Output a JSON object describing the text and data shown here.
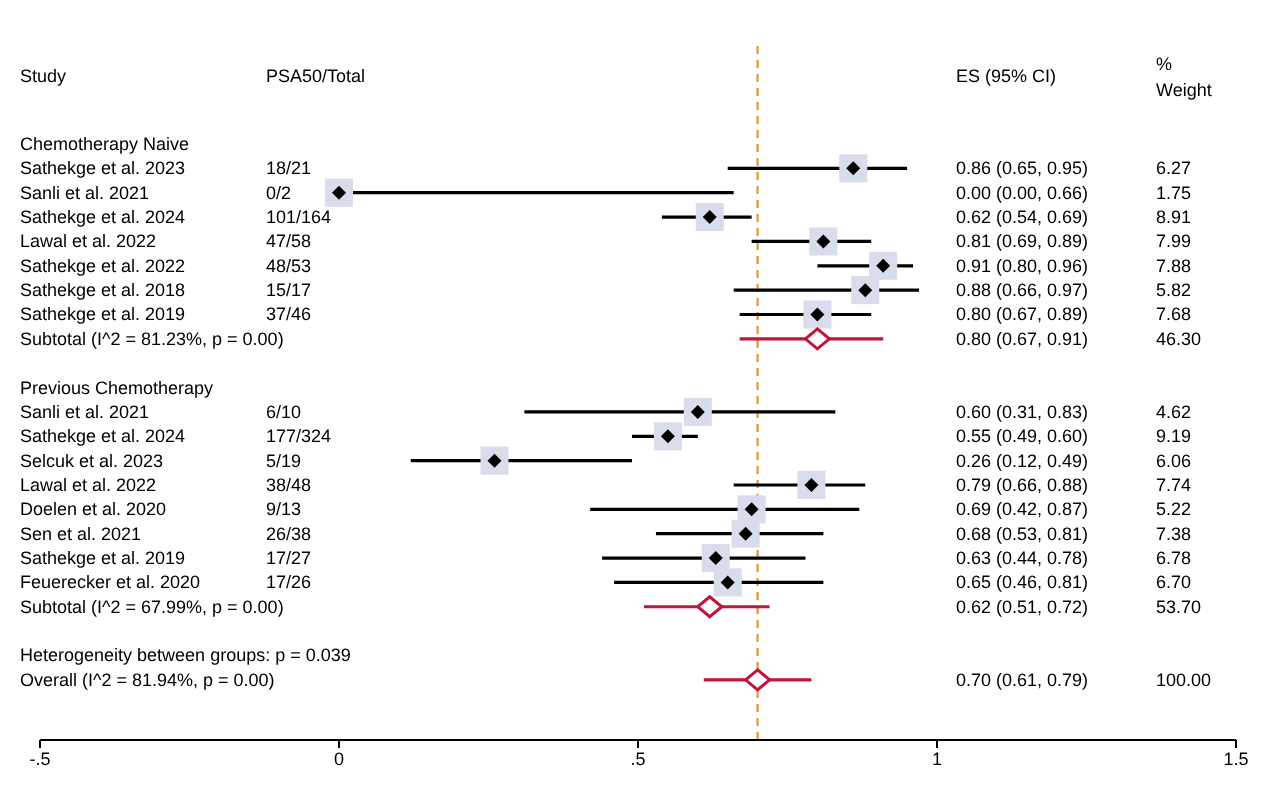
{
  "chart_data": {
    "type": "scatter",
    "orientation": "horizontal",
    "ylabel": "Study",
    "marker": "diamond",
    "categories": [
      "Chemotherapy Naive",
      "Sathekge et al. 2023",
      "Sanli et al. 2021",
      "Sathekge et al. 2024",
      "Lawal et al. 2022",
      "Sathekge et al. 2022",
      "Sathekge et al. 2018",
      "Sathekge et al. 2019",
      "Subtotal  (I^2 = 81.23%, p = 0.00)",
      null,
      "Previous Chemotherapy",
      "Sanli et al. 2021",
      "Sathekge et al. 2024",
      "Selcuk et al. 2023",
      "Lawal et al. 2022",
      "Doelen et al. 2020",
      "Sen et al. 2021",
      "Sathekge et al. 2019",
      "Feuerecker et al. 2020",
      "Subtotal  (I^2 = 67.99%, p = 0.00)",
      null,
      "Heterogeneity between groups: p = 0.039",
      "Overall  (I^2 = 81.94%, p = 0.00)"
    ],
    "series": [
      {
        "color": "#000000",
        "values": [
          null,
          0.86,
          0.0,
          0.62,
          0.81,
          0.91,
          0.88,
          0.8,
          null,
          null,
          null,
          0.6,
          0.55,
          0.26,
          0.79,
          0.69,
          0.68,
          0.63,
          0.65,
          null,
          null,
          null,
          null
        ],
        "errors": [
          null,
          [
            0.65,
            0.95
          ],
          [
            0.0,
            0.66
          ],
          [
            0.54,
            0.69
          ],
          [
            0.69,
            0.89
          ],
          [
            0.8,
            0.96
          ],
          [
            0.66,
            0.97
          ],
          [
            0.67,
            0.89
          ],
          null,
          null,
          null,
          [
            0.31,
            0.83
          ],
          [
            0.49,
            0.6
          ],
          [
            0.12,
            0.49
          ],
          [
            0.66,
            0.88
          ],
          [
            0.42,
            0.87
          ],
          [
            0.53,
            0.81
          ],
          [
            0.44,
            0.78
          ],
          [
            0.46,
            0.81
          ],
          null,
          null,
          null,
          null
        ]
      },
      {
        "color": "#c0143c",
        "values": [
          null,
          null,
          null,
          null,
          null,
          null,
          null,
          null,
          0.8,
          null,
          null,
          null,
          null,
          null,
          null,
          null,
          null,
          null,
          null,
          0.62,
          null,
          null,
          0.7
        ],
        "errors": [
          null,
          null,
          null,
          null,
          null,
          null,
          null,
          null,
          [
            0.67,
            0.91
          ],
          null,
          null,
          null,
          null,
          null,
          null,
          null,
          null,
          null,
          null,
          [
            0.51,
            0.72
          ],
          null,
          null,
          [
            0.61,
            0.79
          ]
        ]
      }
    ],
    "xlim": [
      -0.5,
      1.5
    ],
    "xticks": [
      {
        "value": -0.5,
        "label": "-.5"
      },
      0,
      {
        "value": 0.5,
        "label": ".5"
      },
      1,
      1.5
    ],
    "ref_lines": [
      {
        "axis": "x",
        "value": 0.7,
        "color": "#e0a040",
        "line_style": "dashed"
      }
    ],
    "annotations": [
      "PSA50/Total",
      "ES (95% CI)",
      "% Weight",
      "18/21",
      "0.86 (0.65, 0.95)",
      "6.27",
      "0/2",
      "0.00 (0.00, 0.66)",
      "1.75",
      "101/164",
      "0.62 (0.54, 0.69)",
      "8.91",
      "47/58",
      "0.81 (0.69, 0.89)",
      "7.99",
      "48/53",
      "0.91 (0.80, 0.96)",
      "7.88",
      "15/17",
      "0.88 (0.66, 0.97)",
      "5.82",
      "37/46",
      "0.80 (0.67, 0.89)",
      "7.68",
      "0.80 (0.67, 0.91)",
      "46.30",
      "6/10",
      "0.60 (0.31, 0.83)",
      "4.62",
      "177/324",
      "0.55 (0.49, 0.60)",
      "9.19",
      "5/19",
      "0.26 (0.12, 0.49)",
      "6.06",
      "38/48",
      "0.79 (0.66, 0.88)",
      "7.74",
      "9/13",
      "0.69 (0.42, 0.87)",
      "5.22",
      "26/38",
      "0.68 (0.53, 0.81)",
      "7.38",
      "17/27",
      "0.63 (0.44, 0.78)",
      "6.78",
      "17/26",
      "0.65 (0.46, 0.81)",
      "6.70",
      "0.62 (0.51, 0.72)",
      "53.70",
      "0.70 (0.61, 0.79)",
      "100.00"
    ]
  }
}
